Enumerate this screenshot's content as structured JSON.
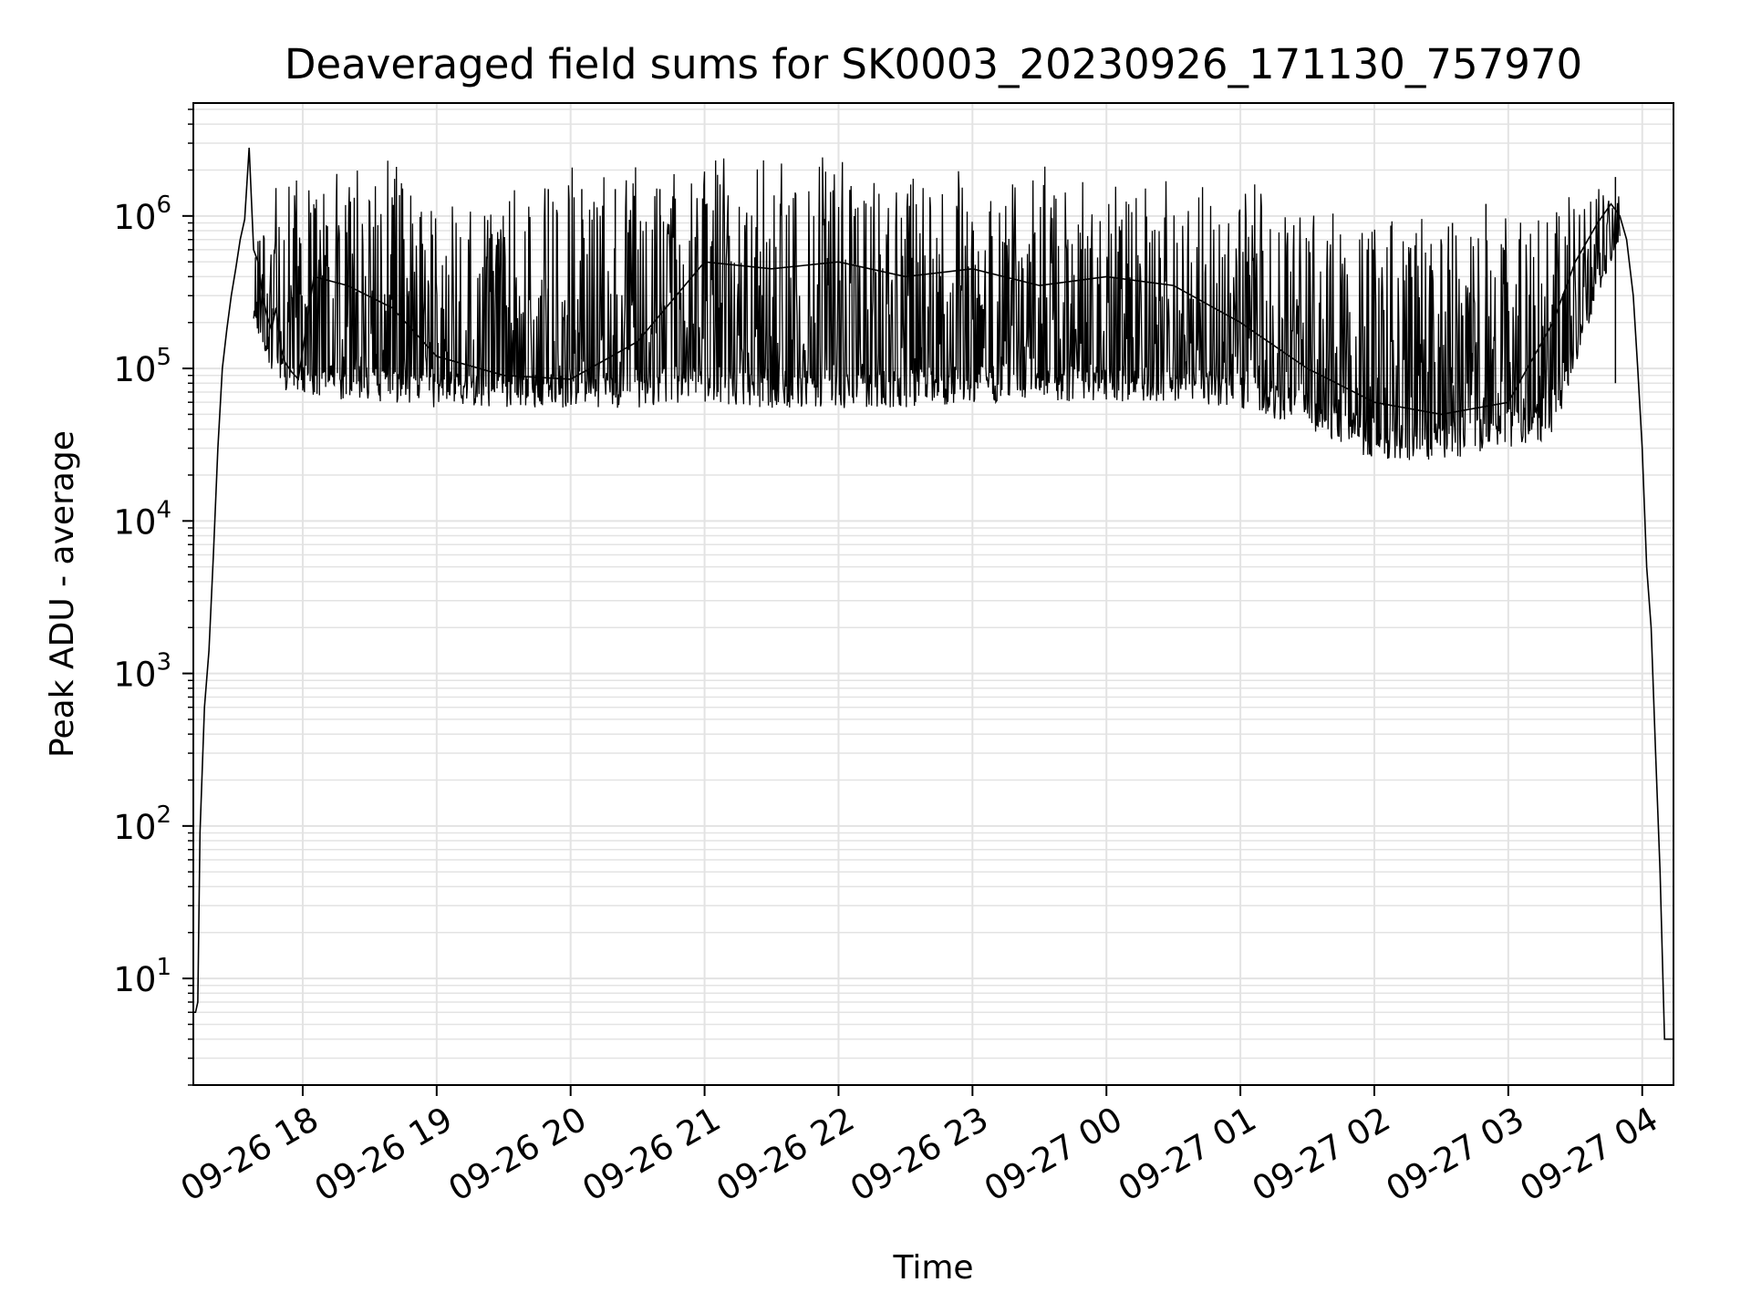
{
  "chart_data": {
    "type": "line",
    "title": "Deaveraged field sums for SK0003_20230926_171130_757970",
    "xlabel": "Time",
    "ylabel": "Peak ADU - average",
    "yscale": "log",
    "ylim": [
      2,
      5500000
    ],
    "xlim": [
      "2023-09-26 17:11",
      "2023-09-27 04:14"
    ],
    "grid": true,
    "legend": "none",
    "line_color": "#000000",
    "x_ticks": [
      {
        "label": "09-26 18",
        "value": "2023-09-26 18:00"
      },
      {
        "label": "09-26 19",
        "value": "2023-09-26 19:00"
      },
      {
        "label": "09-26 20",
        "value": "2023-09-26 20:00"
      },
      {
        "label": "09-26 21",
        "value": "2023-09-26 21:00"
      },
      {
        "label": "09-26 22",
        "value": "2023-09-26 22:00"
      },
      {
        "label": "09-26 23",
        "value": "2023-09-26 23:00"
      },
      {
        "label": "09-27 00",
        "value": "2023-09-27 00:00"
      },
      {
        "label": "09-27 01",
        "value": "2023-09-27 01:00"
      },
      {
        "label": "09-27 02",
        "value": "2023-09-27 02:00"
      },
      {
        "label": "09-27 03",
        "value": "2023-09-27 03:00"
      },
      {
        "label": "09-27 04",
        "value": "2023-09-27 04:00"
      }
    ],
    "y_ticks": [
      {
        "base": "10",
        "exp": "1",
        "value": 10
      },
      {
        "base": "10",
        "exp": "2",
        "value": 100
      },
      {
        "base": "10",
        "exp": "3",
        "value": 1000
      },
      {
        "base": "10",
        "exp": "4",
        "value": 10000
      },
      {
        "base": "10",
        "exp": "5",
        "value": 100000
      },
      {
        "base": "10",
        "exp": "6",
        "value": 1000000
      }
    ],
    "series": [
      {
        "x": [
          "2023-09-26 17:11",
          "2023-09-26 17:12",
          "2023-09-26 17:13",
          "2023-09-26 17:14",
          "2023-09-26 17:16",
          "2023-09-26 17:18",
          "2023-09-26 17:20",
          "2023-09-26 17:22",
          "2023-09-26 17:24",
          "2023-09-26 17:26",
          "2023-09-26 17:28",
          "2023-09-26 17:30",
          "2023-09-26 17:32",
          "2023-09-26 17:34",
          "2023-09-26 17:36",
          "2023-09-26 17:38",
          "2023-09-26 17:40",
          "2023-09-26 17:42",
          "2023-09-26 17:44",
          "2023-09-26 17:46",
          "2023-09-26 17:48",
          "2023-09-26 17:50",
          "2023-09-26 17:52",
          "2023-09-26 17:55",
          "2023-09-26 17:58",
          "2023-09-26 18:05",
          "2023-09-26 18:20",
          "2023-09-26 18:40",
          "2023-09-26 19:00",
          "2023-09-26 19:30",
          "2023-09-26 20:00",
          "2023-09-26 20:30",
          "2023-09-26 21:00",
          "2023-09-26 21:30",
          "2023-09-26 22:00",
          "2023-09-26 22:30",
          "2023-09-26 23:00",
          "2023-09-26 23:30",
          "2023-09-27 00:00",
          "2023-09-27 00:30",
          "2023-09-27 01:00",
          "2023-09-27 01:30",
          "2023-09-27 02:00",
          "2023-09-27 02:30",
          "2023-09-27 03:00",
          "2023-09-27 03:20",
          "2023-09-27 03:30",
          "2023-09-27 03:40",
          "2023-09-27 03:46",
          "2023-09-27 03:50",
          "2023-09-27 03:53",
          "2023-09-27 03:56",
          "2023-09-27 03:58",
          "2023-09-27 04:00",
          "2023-09-27 04:02",
          "2023-09-27 04:04",
          "2023-09-27 04:06",
          "2023-09-27 04:08",
          "2023-09-27 04:10",
          "2023-09-27 04:12",
          "2023-09-27 04:14"
        ],
        "y": [
          6,
          6,
          7,
          90,
          600,
          1400,
          6000,
          30000,
          100000,
          180000,
          300000,
          450000,
          700000,
          950000,
          2800000,
          600000,
          500000,
          300000,
          220000,
          180000,
          250000,
          140000,
          110000,
          95000,
          85000,
          400000,
          350000,
          250000,
          120000,
          90000,
          85000,
          150000,
          500000,
          450000,
          500000,
          400000,
          450000,
          350000,
          400000,
          350000,
          200000,
          100000,
          60000,
          50000,
          60000,
          200000,
          500000,
          900000,
          1200000,
          1000000,
          700000,
          300000,
          100000,
          30000,
          5000,
          2000,
          300,
          50,
          4,
          4,
          4
        ]
      }
    ],
    "bands": {
      "x": [
        "2023-09-26 17:38",
        "2023-09-26 17:50",
        "2023-09-26 18:00",
        "2023-09-26 18:20",
        "2023-09-26 18:40",
        "2023-09-26 19:00",
        "2023-09-26 19:30",
        "2023-09-26 20:00",
        "2023-09-26 20:30",
        "2023-09-26 21:00",
        "2023-09-26 21:30",
        "2023-09-26 22:00",
        "2023-09-26 22:30",
        "2023-09-26 23:00",
        "2023-09-26 23:30",
        "2023-09-27 00:00",
        "2023-09-27 00:30",
        "2023-09-27 01:00",
        "2023-09-27 01:30",
        "2023-09-27 02:00",
        "2023-09-27 02:30",
        "2023-09-27 03:00",
        "2023-09-27 03:20",
        "2023-09-27 03:40",
        "2023-09-27 03:50"
      ],
      "low": [
        200000,
        70000,
        60000,
        60000,
        60000,
        55000,
        55000,
        55000,
        55000,
        60000,
        55000,
        55000,
        55000,
        60000,
        60000,
        60000,
        60000,
        55000,
        40000,
        25000,
        25000,
        30000,
        35000,
        300000,
        700000
      ],
      "high": [
        600000,
        1200000,
        1400000,
        1400000,
        1400000,
        900000,
        1000000,
        1300000,
        1500000,
        1500000,
        1500000,
        1400000,
        1400000,
        1400000,
        1300000,
        1300000,
        1200000,
        1100000,
        1000000,
        700000,
        600000,
        700000,
        900000,
        1300000,
        1300000
      ],
      "spikes": [
        {
          "x": "2023-09-26 19:50",
          "y": 1500000
        },
        {
          "x": "2023-09-26 20:05",
          "y": 1500000
        },
        {
          "x": "2023-09-26 20:20",
          "y": 1500000
        },
        {
          "x": "2023-09-26 20:40",
          "y": 1500000
        },
        {
          "x": "2023-09-27 02:35",
          "y": 900000
        },
        {
          "x": "2023-09-27 02:50",
          "y": 1200000
        },
        {
          "x": "2023-09-27 03:05",
          "y": 600000
        },
        {
          "x": "2023-09-27 03:48",
          "y": 1800000
        }
      ]
    }
  }
}
